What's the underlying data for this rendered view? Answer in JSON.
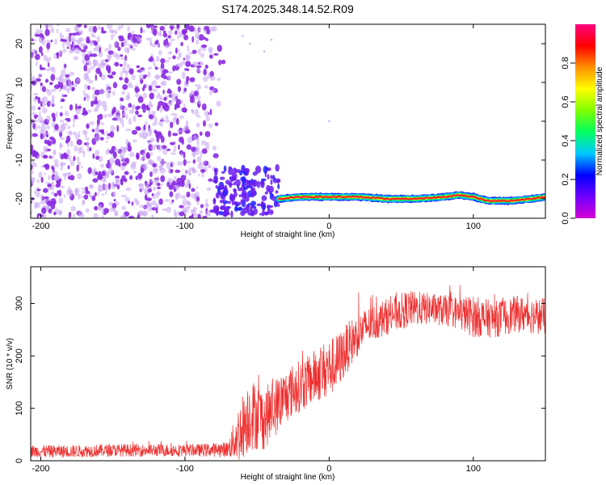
{
  "title": "S174.2025.348.14.52.R09",
  "chart_data": [
    {
      "type": "heatmap",
      "xlabel": "Height of straight line (km)",
      "ylabel": "Frequency (Hz)",
      "xlim": [
        -207,
        150
      ],
      "ylim": [
        -25,
        25
      ],
      "xticks": [
        -200,
        -100,
        0,
        100
      ],
      "xtick_labels": [
        "-200",
        "-100",
        "0",
        "100"
      ],
      "yticks": [
        20,
        10,
        0,
        -10,
        -20
      ],
      "ytick_labels": [
        "20",
        "10",
        "0",
        "-10",
        "-20"
      ],
      "colorbar": {
        "label": "Normalized spectral amplitude",
        "range": [
          0,
          1
        ],
        "ticks": [
          0.0,
          0.2,
          0.4,
          0.6,
          0.8
        ],
        "tick_labels": [
          "0.0",
          "0.2",
          "0.4",
          "0.6",
          "0.8"
        ],
        "stops": [
          "#d400d4",
          "#7000ff",
          "#0000ff",
          "#00c8ff",
          "#00ff60",
          "#80ff00",
          "#ffff00",
          "#ff9000",
          "#ff0000",
          "#ff0080"
        ]
      },
      "noise_region": {
        "x": [
          -207,
          -72
        ],
        "freq": [
          -25,
          25
        ],
        "max_amplitude": 0.3
      },
      "transition_region": {
        "x": [
          -80,
          -35
        ],
        "freq_center": -18,
        "max_amplitude": 0.4
      },
      "signal_track": {
        "x": [
          -35,
          -20,
          0,
          20,
          40,
          60,
          80,
          90,
          100,
          110,
          125,
          140,
          150
        ],
        "freq": [
          -20,
          -19.5,
          -19.5,
          -19.5,
          -20,
          -20,
          -19.5,
          -19,
          -19.5,
          -20.5,
          -20.5,
          -20,
          -19.5
        ],
        "peak_amplitude": 0.95
      },
      "colors": {
        "noise": "#8a2be2",
        "noise_light": "#c9a6f2",
        "core": "#ff2020",
        "halo": "#00e060"
      }
    },
    {
      "type": "line",
      "xlabel": "Height of straight line (km)",
      "ylabel": "SNR (10 * v/v)",
      "xlim": [
        -207,
        150
      ],
      "ylim": [
        0,
        370
      ],
      "xticks": [
        -200,
        -100,
        0,
        100
      ],
      "xtick_labels": [
        "-200",
        "-100",
        "0",
        "100"
      ],
      "yticks": [
        0,
        100,
        200,
        300
      ],
      "ytick_labels": [
        "0",
        "100",
        "200",
        "300"
      ],
      "series": [
        {
          "name": "SNR",
          "color": "#ee3030",
          "x": [
            -207,
            -180,
            -150,
            -120,
            -90,
            -70,
            -62,
            -55,
            -45,
            -35,
            -25,
            -15,
            -5,
            5,
            15,
            25,
            40,
            55,
            70,
            85,
            100,
            115,
            130,
            150
          ],
          "mean": [
            18,
            18,
            20,
            20,
            20,
            22,
            55,
            90,
            80,
            110,
            135,
            150,
            170,
            185,
            225,
            255,
            275,
            290,
            290,
            285,
            275,
            270,
            280,
            275
          ],
          "spread": [
            12,
            12,
            12,
            12,
            12,
            15,
            60,
            70,
            60,
            55,
            50,
            50,
            55,
            55,
            45,
            35,
            35,
            35,
            30,
            30,
            40,
            35,
            35,
            35
          ]
        }
      ]
    }
  ]
}
